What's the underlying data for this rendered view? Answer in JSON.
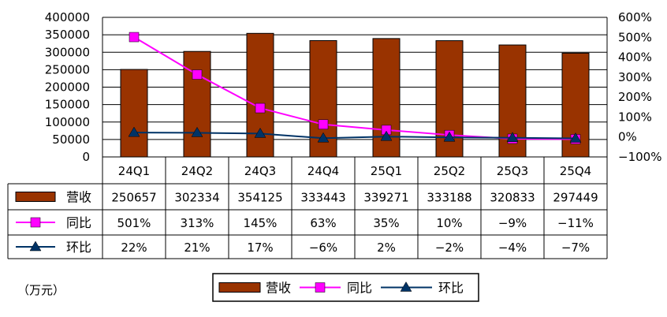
{
  "chart_data": {
    "type": "bar",
    "categories": [
      "24Q1",
      "24Q2",
      "24Q3",
      "24Q4",
      "25Q1",
      "25Q2",
      "25Q3",
      "25Q4"
    ],
    "series": [
      {
        "name": "营收",
        "type": "bar",
        "axis": "left",
        "color": "#993300",
        "values": [
          250657,
          302334,
          354125,
          333443,
          339271,
          333188,
          320833,
          297449
        ]
      },
      {
        "name": "同比",
        "type": "line",
        "axis": "right",
        "color": "#FF00FF",
        "marker": "square",
        "values": [
          501,
          313,
          145,
          63,
          35,
          10,
          -9,
          -11
        ]
      },
      {
        "name": "环比",
        "type": "line",
        "axis": "right",
        "color": "#003366",
        "marker": "triangle",
        "values": [
          22,
          21,
          17,
          -6,
          2,
          -2,
          -4,
          -7
        ]
      }
    ],
    "table": {
      "rows": [
        {
          "label": "营收",
          "cells": [
            "250657",
            "302334",
            "354125",
            "333443",
            "339271",
            "333188",
            "320833",
            "297449"
          ]
        },
        {
          "label": "同比",
          "cells": [
            "501%",
            "313%",
            "145%",
            "63%",
            "35%",
            "10%",
            "−9%",
            "−11%"
          ]
        },
        {
          "label": "环比",
          "cells": [
            "22%",
            "21%",
            "17%",
            "−6%",
            "2%",
            "−2%",
            "−4%",
            "−7%"
          ]
        }
      ]
    },
    "left_axis": {
      "min": 0,
      "max": 400000,
      "step": 50000,
      "ticks": [
        "0",
        "50000",
        "100000",
        "150000",
        "200000",
        "250000",
        "300000",
        "350000",
        "400000"
      ]
    },
    "right_axis": {
      "min": -100,
      "max": 600,
      "step": 100,
      "unit": "%",
      "ticks": [
        "−100%",
        "0%",
        "100%",
        "200%",
        "300%",
        "400%",
        "500%",
        "600%"
      ]
    },
    "unit_note": "（万元）",
    "legend": {
      "position": "bottom-center",
      "items": [
        "营收",
        "同比",
        "环比"
      ]
    },
    "grid": true
  }
}
